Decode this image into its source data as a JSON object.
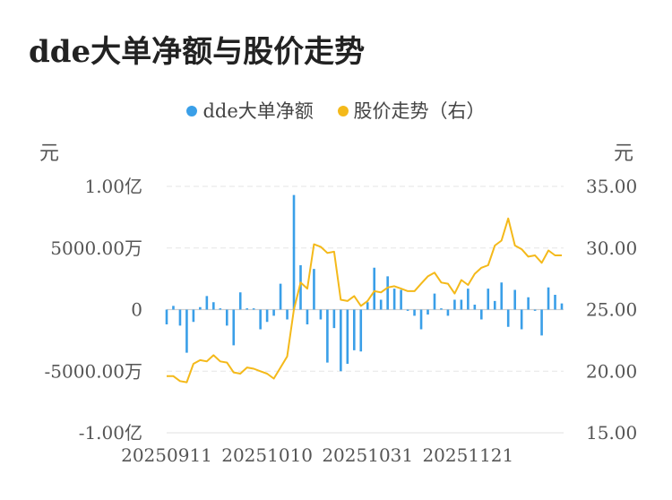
{
  "title": "dde大单净额与股价走势",
  "colors": {
    "bar": "#3a9fe8",
    "line": "#f4b91a",
    "grid": "#e6e6e6",
    "zero": "#cfcfcf"
  },
  "chart_data": {
    "type": "bar+line",
    "legend": [
      {
        "name": "dde大单净额",
        "color": "#3a9fe8",
        "icon": "circle-dot-icon"
      },
      {
        "name": "股价走势（右）",
        "color": "#f4b91a",
        "icon": "circle-dot-icon"
      }
    ],
    "left_unit": "元",
    "right_unit": "元",
    "left_ticks": [
      "1.00亿",
      "5000.00万",
      "0",
      "-5000.00万",
      "-1.00亿"
    ],
    "right_ticks": [
      "35.00",
      "30.00",
      "25.00",
      "20.00",
      "15.00"
    ],
    "left_range": [
      -10000,
      10000
    ],
    "right_range": [
      15,
      35
    ],
    "x_labels": [
      {
        "text": "20250911",
        "index": 0
      },
      {
        "text": "20251010",
        "index": 15
      },
      {
        "text": "20251031",
        "index": 30
      },
      {
        "text": "20251121",
        "index": 45
      }
    ],
    "grid": true,
    "legend_position": "top",
    "series": [
      {
        "name": "dde大单净额",
        "kind": "bar",
        "unit": "万元",
        "values": [
          -1200,
          300,
          -1300,
          -3500,
          -1000,
          200,
          1100,
          600,
          100,
          -1300,
          -2900,
          1400,
          100,
          100,
          -1600,
          -1000,
          -500,
          2100,
          -800,
          9300,
          3600,
          -1200,
          3300,
          -800,
          -4300,
          -1500,
          -5000,
          -4400,
          -3300,
          -3400,
          600,
          3400,
          800,
          2700,
          1700,
          1600,
          -100,
          -500,
          -1600,
          -400,
          1300,
          100,
          -500,
          800,
          800,
          1700,
          400,
          -800,
          1700,
          700,
          2200,
          -1400,
          1600,
          -1600,
          1000,
          -100,
          -2100,
          1800,
          1200,
          500
        ]
      },
      {
        "name": "股价走势（右）",
        "kind": "line",
        "unit": "元",
        "values": [
          19.6,
          19.6,
          19.2,
          19.1,
          20.6,
          20.9,
          20.8,
          21.3,
          20.8,
          20.7,
          19.9,
          19.8,
          20.3,
          20.2,
          20.0,
          19.8,
          19.4,
          20.3,
          21.2,
          25.0,
          27.2,
          26.7,
          30.3,
          30.1,
          29.6,
          29.7,
          25.8,
          25.7,
          26.1,
          25.3,
          25.7,
          26.5,
          26.4,
          26.8,
          26.9,
          26.7,
          26.5,
          26.5,
          27.1,
          27.7,
          28.0,
          27.2,
          27.1,
          26.3,
          27.4,
          27.0,
          27.9,
          28.4,
          28.6,
          30.2,
          30.6,
          32.4,
          30.2,
          29.9,
          29.3,
          29.4,
          28.8,
          29.8,
          29.4,
          29.4
        ]
      }
    ]
  }
}
